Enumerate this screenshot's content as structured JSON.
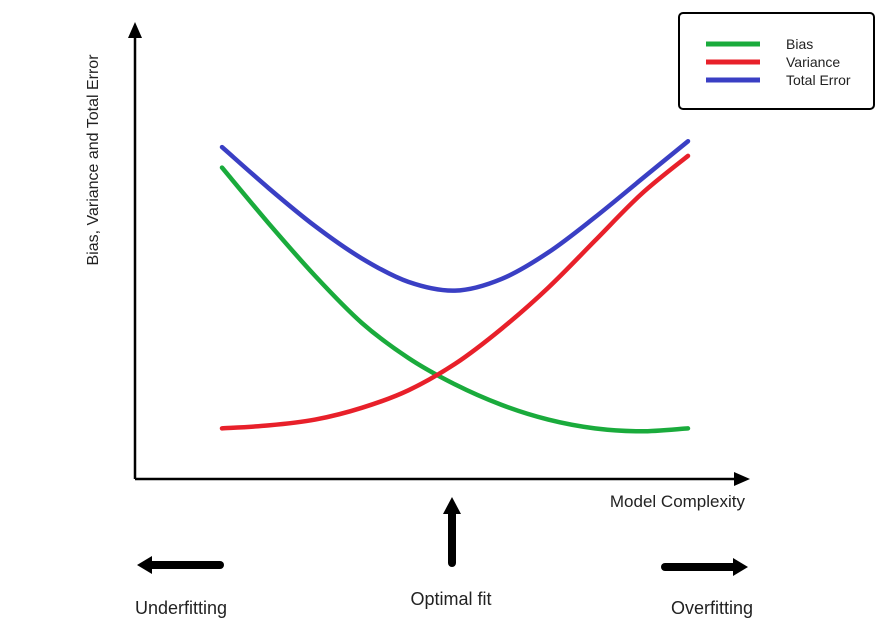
{
  "chart_data": {
    "type": "line",
    "ylabel": "Bias, Variance and Total Error",
    "xlabel": "Model Complexity",
    "x": [
      0,
      0.1,
      0.2,
      0.3,
      0.4,
      0.5,
      0.6,
      0.7,
      0.8,
      0.9,
      1.0
    ],
    "xlim": [
      0,
      1
    ],
    "ylim": [
      0,
      1
    ],
    "grid": false,
    "legend_position": "top-right",
    "series": [
      {
        "name": "Bias",
        "color": "#1aab3c",
        "values": [
          0.94,
          0.75,
          0.57,
          0.41,
          0.29,
          0.2,
          0.13,
          0.08,
          0.05,
          0.04,
          0.05
        ]
      },
      {
        "name": "Variance",
        "color": "#e8202a",
        "values": [
          0.05,
          0.06,
          0.08,
          0.12,
          0.18,
          0.27,
          0.39,
          0.53,
          0.69,
          0.85,
          0.98
        ]
      },
      {
        "name": "Total Error",
        "color": "#3a3fc4",
        "values": [
          1.01,
          0.87,
          0.74,
          0.63,
          0.55,
          0.52,
          0.56,
          0.65,
          0.77,
          0.9,
          1.03
        ]
      }
    ]
  },
  "annotations": {
    "underfitting": "Underfitting",
    "optimal_fit": "Optimal fit",
    "overfitting": "Overfitting"
  }
}
